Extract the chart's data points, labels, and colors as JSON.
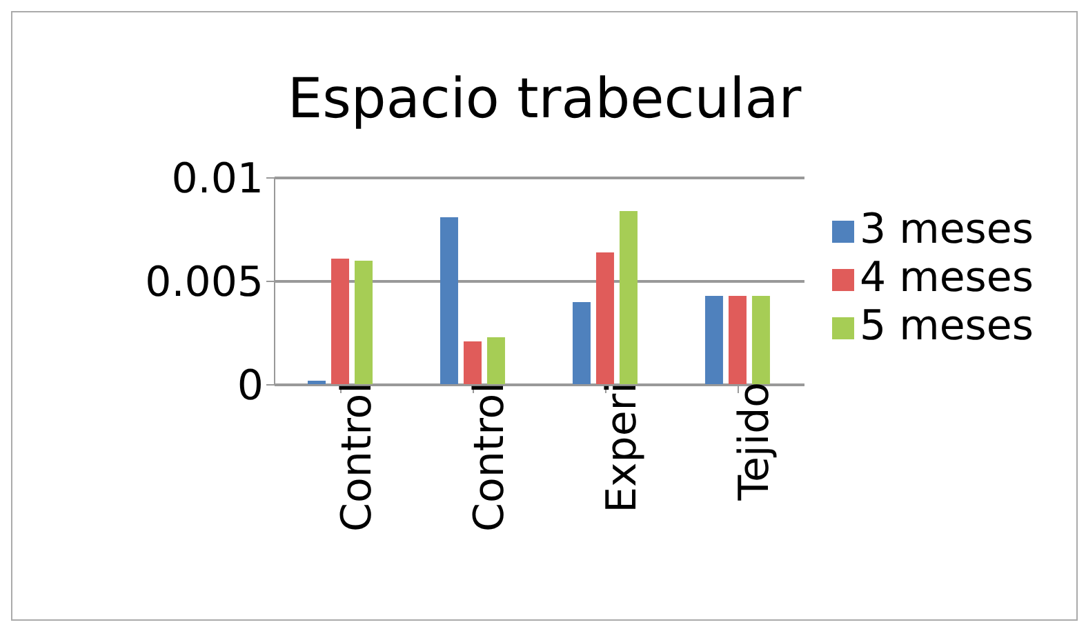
{
  "chart_data": {
    "type": "bar",
    "title": "Espacio trabecular",
    "categories": [
      "Control",
      "Control",
      "Experi",
      "Tejido"
    ],
    "series": [
      {
        "name": "3 meses",
        "color": "#4f81bd",
        "values": [
          0.0002,
          0.0081,
          0.004,
          0.0043
        ]
      },
      {
        "name": "4 meses",
        "color": "#e05c5a",
        "values": [
          0.0061,
          0.0021,
          0.0064,
          0.0043
        ]
      },
      {
        "name": "5 meses",
        "color": "#a6cd55",
        "values": [
          0.006,
          0.0023,
          0.0084,
          0.0043
        ]
      }
    ],
    "ylim": [
      0,
      0.01
    ],
    "yticks": [
      0,
      0.005,
      0.01
    ],
    "grid": "y",
    "legend": "right"
  }
}
